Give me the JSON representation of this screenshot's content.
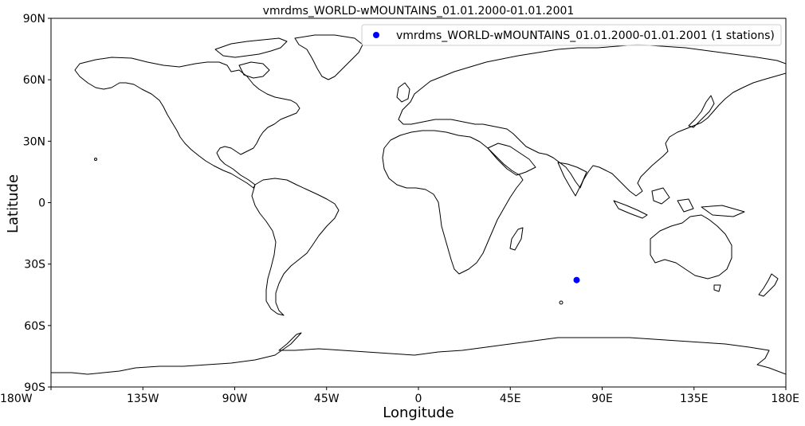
{
  "chart_data": {
    "type": "scatter",
    "title": "vmrdms_WORLD-wMOUNTAINS_01.01.2000-01.01.2001",
    "xlabel": "Longitude",
    "ylabel": "Latitude",
    "xlim": [
      -180,
      180
    ],
    "ylim": [
      -90,
      90
    ],
    "xticks": [
      {
        "value": -180,
        "label": "180W"
      },
      {
        "value": -135,
        "label": "135W"
      },
      {
        "value": -90,
        "label": "90W"
      },
      {
        "value": -45,
        "label": "45W"
      },
      {
        "value": 0,
        "label": "0"
      },
      {
        "value": 45,
        "label": "45E"
      },
      {
        "value": 90,
        "label": "90E"
      },
      {
        "value": 135,
        "label": "135E"
      },
      {
        "value": 180,
        "label": "180E"
      }
    ],
    "yticks": [
      {
        "value": 90,
        "label": "90N"
      },
      {
        "value": 60,
        "label": "60N"
      },
      {
        "value": 30,
        "label": "30N"
      },
      {
        "value": 0,
        "label": "0"
      },
      {
        "value": -30,
        "label": "30S"
      },
      {
        "value": -60,
        "label": "60S"
      },
      {
        "value": -90,
        "label": "90S"
      }
    ],
    "grid": false,
    "legend_position": "top-right",
    "series": [
      {
        "name": "vmrdms_WORLD-wMOUNTAINS_01.01.2000-01.01.2001 (1 stations)",
        "color": "#0000ff",
        "points": [
          {
            "lon": 77.5,
            "lat": -37.8
          }
        ]
      }
    ]
  }
}
